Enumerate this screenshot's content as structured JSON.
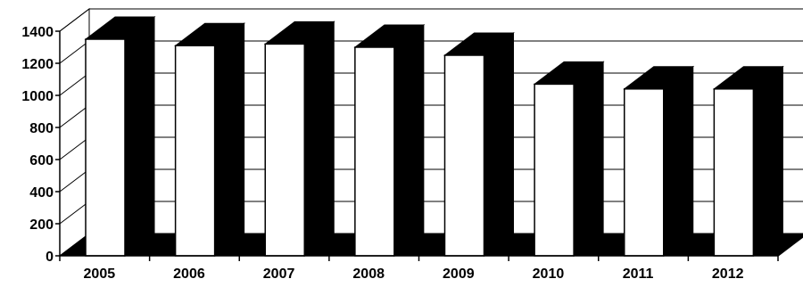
{
  "chart_data": {
    "type": "bar",
    "style": "3d",
    "categories": [
      "2005",
      "2006",
      "2007",
      "2008",
      "2009",
      "2010",
      "2011",
      "2012"
    ],
    "series": [
      {
        "values": [
          1350,
          1310,
          1320,
          1300,
          1250,
          1070,
          1040,
          1040
        ]
      }
    ],
    "ylim": [
      0,
      1400
    ],
    "yticks": [
      0,
      200,
      400,
      600,
      800,
      1000,
      1200,
      1400
    ],
    "grid": true,
    "legend": "none",
    "title": "",
    "xlabel": "",
    "ylabel": "",
    "colors": {
      "bar_front": "#ffffff",
      "bar_depth": "#000000",
      "floor": "#000000",
      "grid": "#000000"
    }
  }
}
